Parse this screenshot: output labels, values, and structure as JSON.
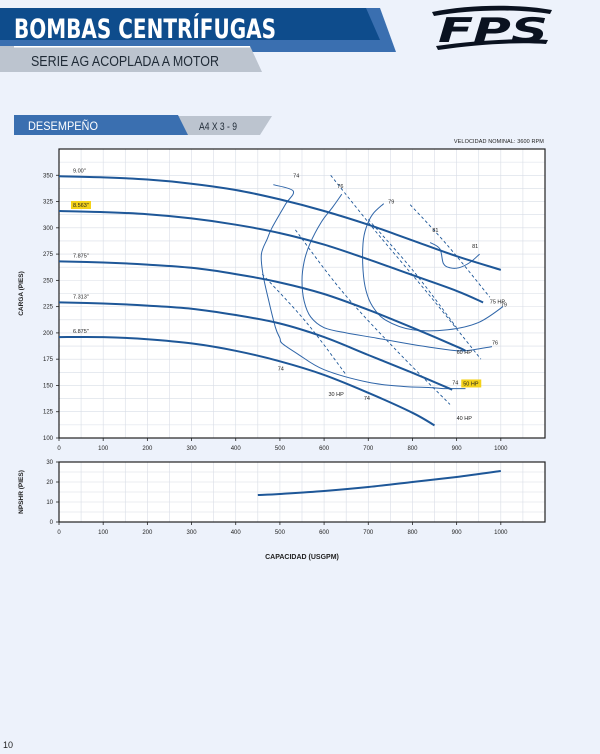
{
  "header": {
    "title": "BOMBAS CENTRÍFUGAS",
    "subtitle": "SERIE AG ACOPLADA A MOTOR",
    "brand": "FPS",
    "colors": {
      "navy": "#0e4c8c",
      "mid_blue": "#3a6fb0",
      "light_blue": "#4b82c2",
      "gray_band": "#bcc4cf"
    }
  },
  "section": {
    "label": "DESEMPEÑO",
    "model": "A4 X 3 - 9"
  },
  "speed_note": "VELOCIDAD NOMINAL: 3600 RPM",
  "page_number": "10",
  "chart_data": [
    {
      "type": "line",
      "name": "head",
      "xlabel": "",
      "ylabel": "CARGA (PIES)",
      "xlim": [
        0,
        1100
      ],
      "ylim": [
        100,
        375
      ],
      "xticks": [
        0,
        100,
        200,
        300,
        400,
        500,
        600,
        700,
        800,
        900,
        1000
      ],
      "yticks": [
        100,
        125,
        150,
        175,
        200,
        225,
        250,
        275,
        300,
        325,
        350
      ],
      "grid": true,
      "curve_color": "#1e5798",
      "highlight_color": "#f4d21a",
      "impeller_curves": [
        {
          "label": "9.00\"",
          "highlight": false,
          "x": [
            0,
            100,
            200,
            300,
            400,
            500,
            600,
            700,
            800,
            900,
            1000
          ],
          "y": [
            349,
            348,
            346,
            342,
            336,
            327,
            316,
            303,
            288,
            273,
            260
          ]
        },
        {
          "label": "8.563\"",
          "highlight": true,
          "x": [
            0,
            100,
            200,
            300,
            400,
            500,
            600,
            700,
            800,
            900,
            960
          ],
          "y": [
            316,
            315,
            313,
            309,
            303,
            295,
            284,
            270,
            255,
            240,
            229
          ]
        },
        {
          "label": "7.875\"",
          "highlight": false,
          "x": [
            0,
            100,
            200,
            300,
            400,
            500,
            600,
            700,
            800,
            900,
            920
          ],
          "y": [
            268,
            267,
            265,
            262,
            256,
            248,
            237,
            222,
            205,
            187,
            183
          ]
        },
        {
          "label": "7.313\"",
          "highlight": false,
          "x": [
            0,
            100,
            200,
            300,
            400,
            500,
            600,
            700,
            800,
            890
          ],
          "y": [
            229,
            228,
            226,
            223,
            217,
            209,
            196,
            179,
            162,
            146
          ]
        },
        {
          "label": "6.875\"",
          "highlight": false,
          "x": [
            0,
            100,
            200,
            300,
            400,
            500,
            600,
            700,
            800,
            850
          ],
          "y": [
            196,
            196,
            194,
            190,
            183,
            173,
            160,
            143,
            124,
            112
          ]
        }
      ],
      "efficiency_curves": [
        {
          "label": "74",
          "x": [
            485,
            530,
            512,
            482,
            472,
            458,
            462,
            475,
            490,
            500,
            505,
            540,
            600,
            700,
            780,
            840,
            870,
            890,
            900,
            905,
            920
          ],
          "y": [
            341,
            335,
            322,
            300,
            290,
            275,
            255,
            230,
            205,
            195,
            190,
            180,
            165,
            153,
            149,
            148,
            147,
            147,
            147,
            147,
            147
          ]
        },
        {
          "label": "76",
          "x": [
            640,
            620,
            593,
            568,
            555,
            550,
            555,
            570,
            600,
            650,
            720,
            800,
            880,
            920,
            980
          ],
          "y": [
            332,
            320,
            305,
            285,
            268,
            250,
            230,
            215,
            205,
            200,
            195,
            189,
            184,
            183,
            187
          ]
        },
        {
          "label": "79",
          "x": [
            735,
            710,
            695,
            688,
            688,
            695,
            710,
            740,
            800,
            880,
            950,
            1005
          ],
          "y": [
            323,
            313,
            300,
            285,
            260,
            240,
            225,
            212,
            203,
            203,
            210,
            225
          ]
        },
        {
          "label": "81",
          "x": [
            840,
            862,
            870,
            885,
            905,
            930,
            952
          ],
          "y": [
            286,
            280,
            266,
            262,
            262,
            267,
            275
          ]
        }
      ],
      "power_lines": [
        {
          "label": "30 HP",
          "x": [
            460,
            560,
            650
          ],
          "y": [
            256,
            210,
            160
          ]
        },
        {
          "label": "40 HP",
          "x": [
            535,
            640,
            760,
            885
          ],
          "y": [
            298,
            240,
            185,
            132
          ]
        },
        {
          "label": "50 HP",
          "highlight": true,
          "x": [
            615,
            720,
            840,
            955
          ],
          "y": [
            350,
            295,
            235,
            175
          ]
        },
        {
          "label": "60 HP",
          "x": [
            700,
            800,
            900
          ],
          "y": [
            308,
            260,
            205
          ]
        },
        {
          "label": "75 HP",
          "x": [
            795,
            880,
            975
          ],
          "y": [
            322,
            283,
            234
          ]
        }
      ],
      "power_labels": [
        {
          "label": "30 HP",
          "x": 610,
          "y": 140
        },
        {
          "label": "40 HP",
          "x": 900,
          "y": 117
        },
        {
          "label": "50 HP",
          "x": 915,
          "y": 150
        },
        {
          "label": "60 HP",
          "x": 900,
          "y": 180
        },
        {
          "label": "75 HP",
          "x": 975,
          "y": 228
        }
      ],
      "efficiency_labels": [
        {
          "label": "74",
          "x": 530,
          "y": 348
        },
        {
          "label": "76",
          "x": 630,
          "y": 338
        },
        {
          "label": "79",
          "x": 745,
          "y": 323
        },
        {
          "label": "81",
          "x": 845,
          "y": 296
        },
        {
          "label": "81",
          "x": 935,
          "y": 281
        },
        {
          "label": "79",
          "x": 1000,
          "y": 225
        },
        {
          "label": "76",
          "x": 980,
          "y": 189
        },
        {
          "label": "74",
          "x": 890,
          "y": 151
        },
        {
          "label": "74",
          "x": 495,
          "y": 164
        },
        {
          "label": "74",
          "x": 690,
          "y": 136
        }
      ]
    },
    {
      "type": "line",
      "name": "npshr",
      "xlabel": "CAPACIDAD (USGPM)",
      "ylabel": "NPSHR (PIES)",
      "xlim": [
        0,
        1100
      ],
      "ylim": [
        0,
        30
      ],
      "xticks": [
        0,
        100,
        200,
        300,
        400,
        500,
        600,
        700,
        800,
        900,
        1000
      ],
      "yticks": [
        0,
        10,
        20,
        30
      ],
      "grid": true,
      "series": [
        {
          "x": [
            450,
            500,
            600,
            700,
            800,
            900,
            1000
          ],
          "y": [
            13.5,
            14,
            15.5,
            17.5,
            20,
            22.5,
            25.5
          ]
        }
      ]
    }
  ]
}
